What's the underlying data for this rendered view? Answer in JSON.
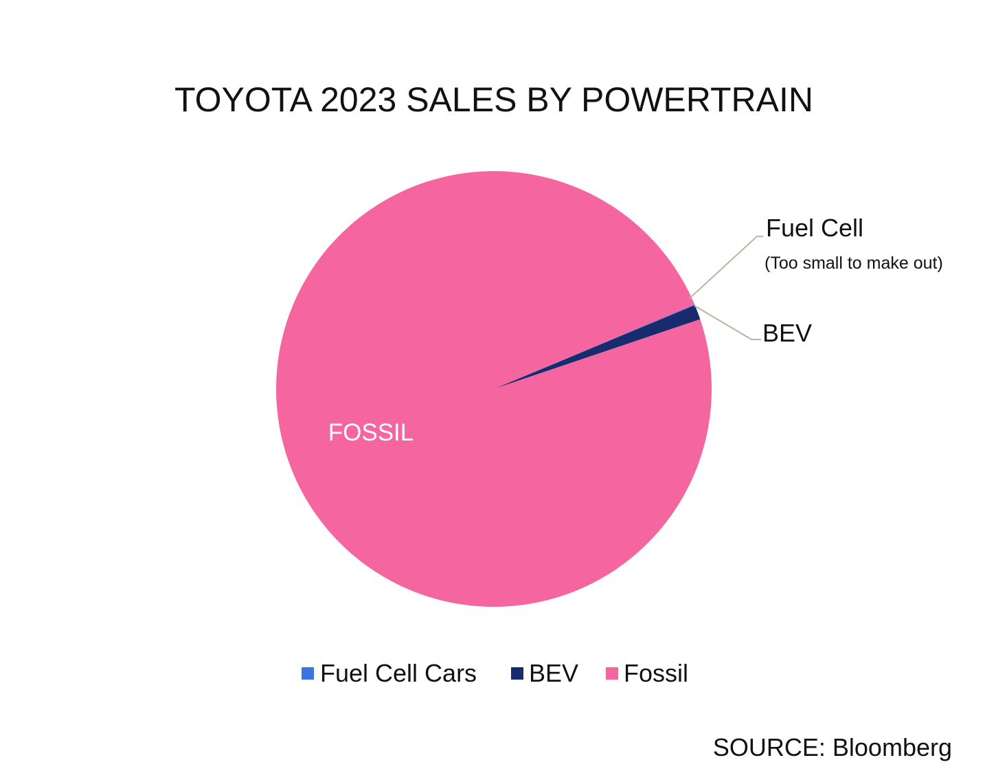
{
  "chart_data": {
    "type": "pie",
    "title": "TOYOTA 2023 SALES BY POWERTRAIN",
    "slices": [
      {
        "name": "Fuel Cell Cars",
        "value": 0.05,
        "color": "#3a74e0"
      },
      {
        "name": "BEV",
        "value": 1.1,
        "color": "#172b6e"
      },
      {
        "name": "Fossil",
        "value": 98.85,
        "color": "#f565a0"
      }
    ],
    "labels": {
      "fossil": "FOSSIL",
      "fuel_cell": "Fuel Cell",
      "fuel_cell_note": "(Too small to make out)",
      "bev": "BEV"
    },
    "legend": {
      "position": "bottom",
      "items": [
        "Fuel Cell Cars",
        "BEV",
        "Fossil"
      ]
    },
    "source": "SOURCE: Bloomberg"
  }
}
